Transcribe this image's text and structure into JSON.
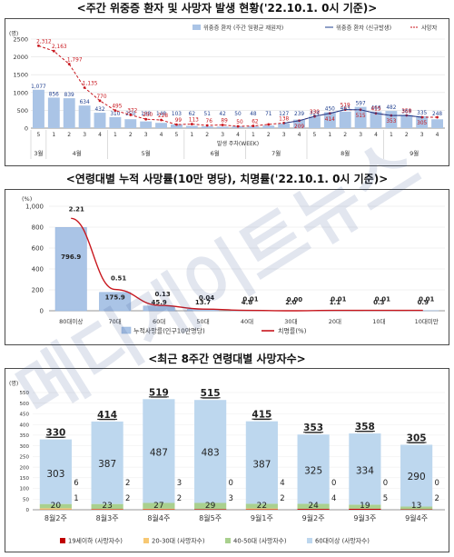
{
  "panels": {
    "weekly": {
      "title": "<주간 위중증 환자 및 사망자 발생 현황('22.10.1. 0시 기준)>",
      "unit": "(명)",
      "xlabel": "발생 주차(WEEK)",
      "yticks": [
        "0",
        "500",
        "1000",
        "1500",
        "2000",
        "2500"
      ],
      "legend": [
        "위중증 환자 (주간 일평균 재원자)",
        "위중증 환자 (신규발생)",
        "사망자"
      ]
    },
    "age_rate": {
      "title": "<연령대별 누적 사망률(10만 명당), 치명률('22.10.1. 0시 기준)>",
      "unit": "(%)",
      "yticks": [
        "0",
        "200",
        "400",
        "600",
        "800",
        "1,000"
      ],
      "legend": [
        "누적사망률(인구10만명당)",
        "치명률(%)"
      ]
    },
    "age_weekly": {
      "title": "<최근 8주간 연령대별 사망자수>",
      "unit": "(명)",
      "yticks": [
        "0",
        "50",
        "100",
        "150",
        "200",
        "250",
        "300",
        "350",
        "400",
        "450",
        "500",
        "550"
      ],
      "legend": [
        "19세이하 (사망자수)",
        "20-30대 (사망자수)",
        "40-50대 (사망자수)",
        "60대이상 (사망자수)"
      ]
    }
  },
  "colors": {
    "bar_blue": "#aac4e6",
    "bar_blue_dark": "#8fb0dc",
    "line_red": "#c8161d",
    "line_blue": "#1f3f8f",
    "under19": "#c00000",
    "age2030": "#f7c873",
    "age4050": "#a9d08e",
    "age60": "#bdd7ee",
    "frame": "#4a4a4a"
  },
  "watermark": "메디게이트뉴스",
  "chart_data": [
    {
      "type": "bar",
      "title": "<주간 위중증 환자 및 사망자 발생 현황('22.10.1. 0시 기준)>",
      "ylabel": "(명)",
      "xlabel": "발생 주차(WEEK)",
      "ylim": [
        0,
        2500
      ],
      "week_labels": [
        "5",
        "1",
        "2",
        "3",
        "4",
        "1",
        "2",
        "3",
        "4",
        "5",
        "1",
        "2",
        "3",
        "4",
        "1",
        "2",
        "3",
        "4",
        "5",
        "1",
        "2",
        "3",
        "4",
        "1",
        "2",
        "3",
        "4"
      ],
      "month_labels": [
        {
          "label": "3월",
          "start": 0,
          "end": 0
        },
        {
          "label": "4월",
          "start": 1,
          "end": 4
        },
        {
          "label": "5월",
          "start": 5,
          "end": 9
        },
        {
          "label": "6월",
          "start": 10,
          "end": 13
        },
        {
          "label": "7월",
          "start": 14,
          "end": 17
        },
        {
          "label": "8월",
          "start": 18,
          "end": 22
        },
        {
          "label": "9월",
          "start": 23,
          "end": 26
        }
      ],
      "series": [
        {
          "name": "위중증 환자 (주간 일평균 재원자)",
          "kind": "bar",
          "values": [
            1077,
            856,
            839,
            634,
            432,
            310,
            250,
            188,
            148,
            103,
            62,
            51,
            42,
            50,
            48,
            71,
            127,
            239,
            324,
            450,
            463,
            597,
            466,
            482,
            369,
            335,
            248
          ]
        },
        {
          "name": "위중증 환자 (신규발생)",
          "kind": "line",
          "values": [
            null,
            null,
            null,
            null,
            null,
            null,
            null,
            null,
            null,
            null,
            null,
            null,
            null,
            null,
            null,
            null,
            138,
            209,
            330,
            414,
            519,
            515,
            415,
            353,
            358,
            305,
            null
          ]
        },
        {
          "name": "사망자",
          "kind": "line",
          "values": [
            2312,
            2163,
            1797,
            1135,
            770,
            495,
            372,
            250,
            228,
            99,
            113,
            76,
            89,
            50,
            62,
            104,
            144,
            209,
            330,
            414,
            519,
            515,
            415,
            353,
            358,
            305,
            305
          ]
        }
      ]
    },
    {
      "type": "bar",
      "title": "<연령대별 누적 사망률(10만 명당), 치명률('22.10.1. 0시 기준)>",
      "ylabel": "(%)",
      "ylim": [
        0,
        1000
      ],
      "categories": [
        "80대이상",
        "70대",
        "60대",
        "50대",
        "40대",
        "30대",
        "20대",
        "10대",
        "10대미만"
      ],
      "series": [
        {
          "name": "누적사망률(인구10만명당)",
          "kind": "bar",
          "values": [
            796.9,
            175.9,
            45.9,
            13.7,
            4.8,
            2.0,
            1.1,
            0.3,
            0.9
          ]
        },
        {
          "name": "치명률(%)",
          "kind": "line",
          "values": [
            2.21,
            0.51,
            0.13,
            0.04,
            0.01,
            0.0,
            0.01,
            0.01,
            0.01
          ]
        }
      ]
    },
    {
      "type": "bar",
      "title": "<최근 8주간 연령대별 사망자수>",
      "ylabel": "(명)",
      "ylim": [
        0,
        550
      ],
      "categories": [
        "8월2주",
        "8월3주",
        "8월4주",
        "8월5주",
        "9월1주",
        "9월2주",
        "9월3주",
        "9월4주"
      ],
      "totals": [
        330,
        414,
        519,
        515,
        415,
        353,
        358,
        305
      ],
      "series": [
        {
          "name": "19세이하 (사망자수)",
          "values": [
            1,
            2,
            2,
            3,
            2,
            4,
            5,
            2
          ]
        },
        {
          "name": "20-30대 (사망자수)",
          "values": [
            6,
            2,
            3,
            0,
            4,
            0,
            0,
            0
          ]
        },
        {
          "name": "40-50대 (사망자수)",
          "values": [
            20,
            23,
            27,
            29,
            22,
            24,
            19,
            13
          ]
        },
        {
          "name": "60대이상 (사망자수)",
          "values": [
            303,
            387,
            487,
            483,
            387,
            325,
            334,
            290
          ]
        }
      ]
    }
  ]
}
